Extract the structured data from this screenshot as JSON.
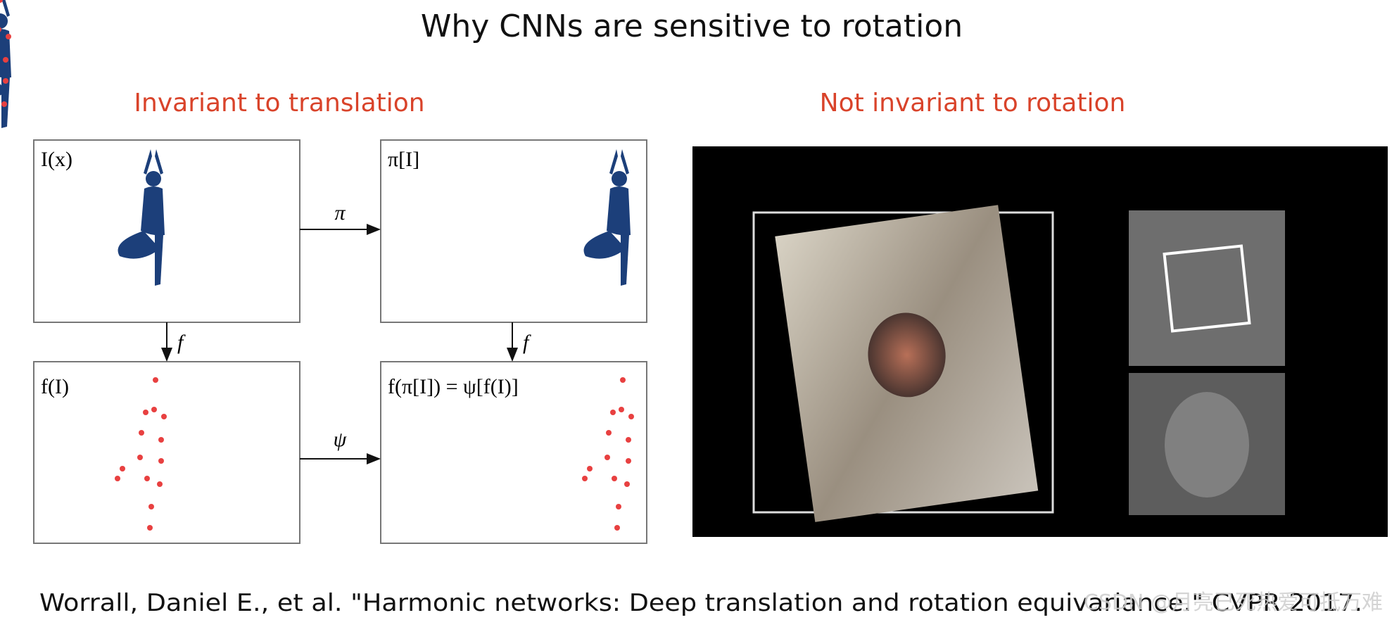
{
  "title": "Why CNNs are sensitive to rotation",
  "left": {
    "heading": "Invariant to translation",
    "boxes": [
      "I(x)",
      "π[I]",
      "f(I)",
      "f(π[I]) = ψ[f(I)]"
    ],
    "arrows": [
      "π",
      "ψ",
      "f",
      "f"
    ]
  },
  "right": {
    "heading": "Not invariant to rotation"
  },
  "citation": "Worrall, Daniel E., et al. \"Harmonic networks: Deep translation and rotation equivariance.\" CVPR 2017.",
  "watermark": "CSDN @月亮已死热爱可抵万难"
}
